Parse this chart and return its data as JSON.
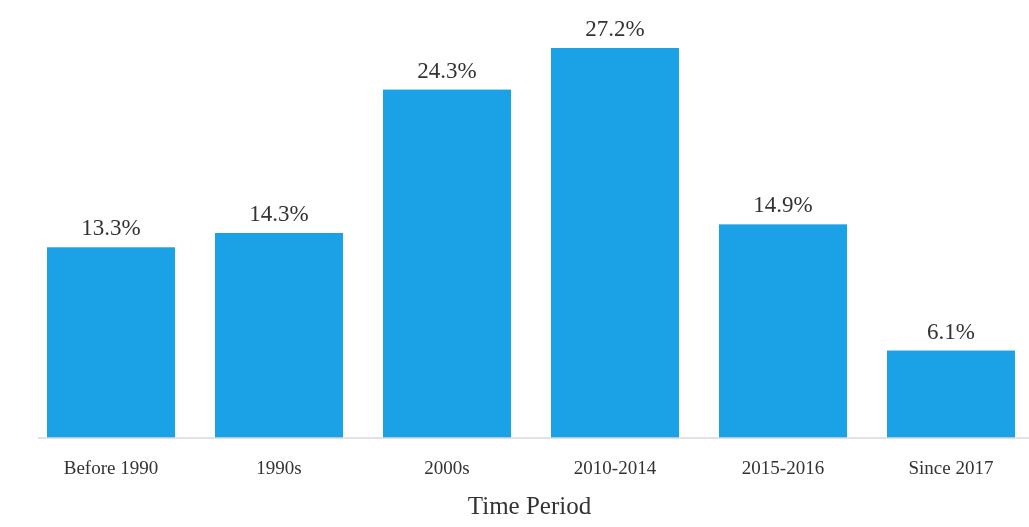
{
  "chart_data": {
    "type": "bar",
    "xlabel": "Time Period",
    "categories": [
      "Before 1990",
      "1990s",
      "2000s",
      "2010-2014",
      "2015-2016",
      "Since 2017"
    ],
    "values": [
      13.3,
      14.3,
      24.3,
      27.2,
      14.9,
      6.1
    ],
    "value_labels": [
      "13.3%",
      "14.3%",
      "24.3%",
      "27.2%",
      "14.9%",
      "6.1%"
    ],
    "color": "#1ba1e6"
  }
}
